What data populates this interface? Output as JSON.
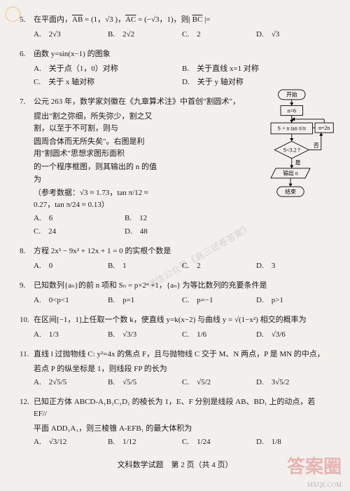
{
  "questions": {
    "q5": {
      "num": "5.",
      "stem": "在平面内，<span class=\"ov\">AB</span> = (1，√3 )，<span class=\"ov\">AC</span> = (−√3，1)，则| <span class=\"ov\">BC</span> |=",
      "opts": [
        "A.　2√3",
        "B.　2√2",
        "C.　2",
        "D.　√3"
      ]
    },
    "q6": {
      "num": "6.",
      "stem": "函数 y=sin(x−1) 的图象",
      "opts": [
        "A.　关于点（1，0）对称",
        "B.　关于直线 x=1 对称",
        "C.　关于 x 轴对称",
        "D.　关于 y 轴对称"
      ]
    },
    "q7": {
      "num": "7.",
      "line1": "公元 263 年，数学家刘徽在《九章算术注》中首创\"割圆术\"，",
      "line2": "提出\"割之弥细，所失弥少，割之又割，以至于不可割，则与",
      "line3": "圆周合体而无所失矣\"。右图是利用\"割圆术\"思想求图形面积",
      "line4": "的一个程序框图，则其输出的 n 的值为",
      "line5": "（参考数据：√3 ≈ 1.73，tan π/12 ≈ 0.27，tan π/24 ≈ 0.13）",
      "opts": [
        "A.　6",
        "B.　12",
        "C.　24",
        "D.　48"
      ]
    },
    "q8": {
      "num": "8.",
      "stem": "方程 2x³ − 9x² + 12x + 1 = 0 的实根个数是",
      "opts": [
        "A.　0",
        "B.　1",
        "C.　2",
        "D.　3"
      ]
    },
    "q9": {
      "num": "9.",
      "stem": "已知数列{aₙ}的前 n 项和 Sₙ = p×2ⁿ +1，{aₙ} 为等比数列的充要条件是",
      "opts": [
        "A.　0<p<1",
        "B.　p=1",
        "C.　p=−1",
        "D.　p>1"
      ]
    },
    "q10": {
      "num": "10.",
      "stem": "在区间[−1，1]上任取一个数 k，使直线 y=k(x−2) 与曲线 y = √(1−x²) 相交的概率为",
      "opts": [
        "A.　1/3",
        "B.　√3/3",
        "C.　1/6",
        "D.　√3/6"
      ]
    },
    "q11": {
      "num": "11.",
      "stem": "直线 l 过抛物线 C: y²=4x 的焦点 F，且与抛物线 C 交于 M、N 两点，P 是 MN 的中点，",
      "line2": "若点 P 的纵坐标是 1，则线段 FP 的长为",
      "opts": [
        "A.　2√5/5",
        "B.　√5/5",
        "C.　√5/2",
        "D.　3√5/2"
      ]
    },
    "q12": {
      "num": "12.",
      "stem": "已知正方体 ABCD-A₁B₁C₁D₁ 的棱长为 1，E、F 分别是线段 AB、BD₁ 上的动点，若 EF//",
      "line2": "平面 ADD₁A₁，则三棱锥 A-EFB₁ 的最大体积为",
      "opts": [
        "A.　√3/12",
        "B.　1/12",
        "C.　1/24",
        "D.　1/8"
      ]
    }
  },
  "flowchart": {
    "start": "开始",
    "init": "n=6",
    "formula": "S = n tan π/n",
    "update": "n=2n",
    "cond": "S<3.2 ?",
    "yes": "是",
    "no": "否",
    "out": "输出 n",
    "end": "结束"
  },
  "footer": "文科数学试题　第 2 页（共 4 页）",
  "watermarks": {
    "center": "微信公众号《高三试卷答案》",
    "brand": "答案圈",
    "url": "MXQE.COM",
    "corner": "◯"
  }
}
